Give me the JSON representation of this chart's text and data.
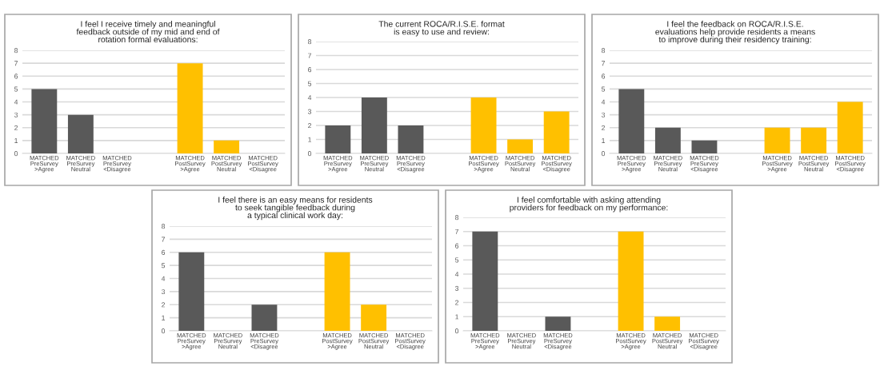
{
  "chart_data": [
    {
      "type": "bar",
      "title": "I feel I receive timely and meaningful\nfeedback outside of my mid and end of\nrotation formal evaluations:",
      "categories": [
        "MATCHED\nPreSurvey\n>Agree",
        "MATCHED\nPreSurvey\nNeutral",
        "MATCHED\nPreSurvey\n<Disagree",
        null,
        "MATCHED\nPostSurvey\n>Agree",
        "MATCHED\nPostSurvey\nNeutral",
        "MATCHED\nPostSurvey\n<Disagree"
      ],
      "values": [
        5,
        3,
        0,
        null,
        7,
        1,
        0
      ],
      "colors": [
        "#595959",
        "#595959",
        "#595959",
        "#595959",
        "#ffc000",
        "#ffc000",
        "#ffc000"
      ],
      "ylim": [
        0,
        8
      ],
      "yticks": [
        0,
        1,
        2,
        3,
        4,
        5,
        6,
        7,
        8
      ],
      "grid": "y"
    },
    {
      "type": "bar",
      "title": "The current ROCA/R.I.S.E. format\nis easy to use and review:",
      "categories": [
        "MATCHED\nPreSurvey\n>Agree",
        "MATCHED\nPreSurvey\nNeutral",
        "MATCHED\nPreSurvey\n<Disagree",
        null,
        "MATCHED\nPostSurvey\n>Agree",
        "MATCHED\nPostSurvey\nNeutral",
        "MATCHED\nPostSurvey\n<Disagree"
      ],
      "values": [
        2,
        4,
        2,
        null,
        4,
        1,
        3
      ],
      "colors": [
        "#595959",
        "#595959",
        "#595959",
        "#595959",
        "#ffc000",
        "#ffc000",
        "#ffc000"
      ],
      "ylim": [
        0,
        8
      ],
      "yticks": [
        0,
        1,
        2,
        3,
        4,
        5,
        6,
        7,
        8
      ],
      "grid": "y"
    },
    {
      "type": "bar",
      "title": "I feel the feedback on ROCA/R.I.S.E.\nevaluations help provide residents a means\nto improve during their residency training:",
      "categories": [
        "MATCHED\nPreSurvey\n>Agree",
        "MATCHED\nPreSurvey\nNeutral",
        "MATCHED\nPreSurvey\n<Disagree",
        null,
        "MATCHED\nPostSurvey\n>Agree",
        "MATCHED\nPostSurvey\nNeutral",
        "MATCHED\nPostSurvey\n<Disagree"
      ],
      "values": [
        5,
        2,
        1,
        null,
        2,
        2,
        4
      ],
      "colors": [
        "#595959",
        "#595959",
        "#595959",
        "#595959",
        "#ffc000",
        "#ffc000",
        "#ffc000"
      ],
      "ylim": [
        0,
        8
      ],
      "yticks": [
        0,
        1,
        2,
        3,
        4,
        5,
        6,
        7,
        8
      ],
      "grid": "y"
    },
    {
      "type": "bar",
      "title": "I feel there is an easy means for residents\nto seek tangible feedback during\na typical clinical work day:",
      "categories": [
        "MATCHED\nPreSurvey\n>Agree",
        "MATCHED\nPreSurvey\nNeutral",
        "MATCHED\nPreSurvey\n<Disagree",
        null,
        "MATCHED\nPostSurvey\n>Agree",
        "MATCHED\nPostSurvey\nNeutral",
        "MATCHED\nPostSurvey\n<Disagree"
      ],
      "values": [
        6,
        0,
        2,
        null,
        6,
        2,
        0
      ],
      "colors": [
        "#595959",
        "#595959",
        "#595959",
        "#595959",
        "#ffc000",
        "#ffc000",
        "#ffc000"
      ],
      "ylim": [
        0,
        8
      ],
      "yticks": [
        0,
        1,
        2,
        3,
        4,
        5,
        6,
        7,
        8
      ],
      "grid": "y"
    },
    {
      "type": "bar",
      "title": "I feel comfortable with asking attending\nproviders for feedback on my performance:",
      "categories": [
        "MATCHED\nPreSurvey\n>Agree",
        "MATCHED\nPreSurvey\nNeutral",
        "MATCHED\nPreSurvey\n<Disagree",
        null,
        "MATCHED\nPostSurvey\n>Agree",
        "MATCHED\nPostSurvey\nNeutral",
        "MATCHED\nPostSurvey\n<Disagree"
      ],
      "values": [
        7,
        0,
        1,
        null,
        7,
        1,
        0
      ],
      "colors": [
        "#595959",
        "#595959",
        "#595959",
        "#595959",
        "#ffc000",
        "#ffc000",
        "#ffc000"
      ],
      "ylim": [
        0,
        8
      ],
      "yticks": [
        0,
        1,
        2,
        3,
        4,
        5,
        6,
        7,
        8
      ],
      "grid": "y"
    }
  ]
}
